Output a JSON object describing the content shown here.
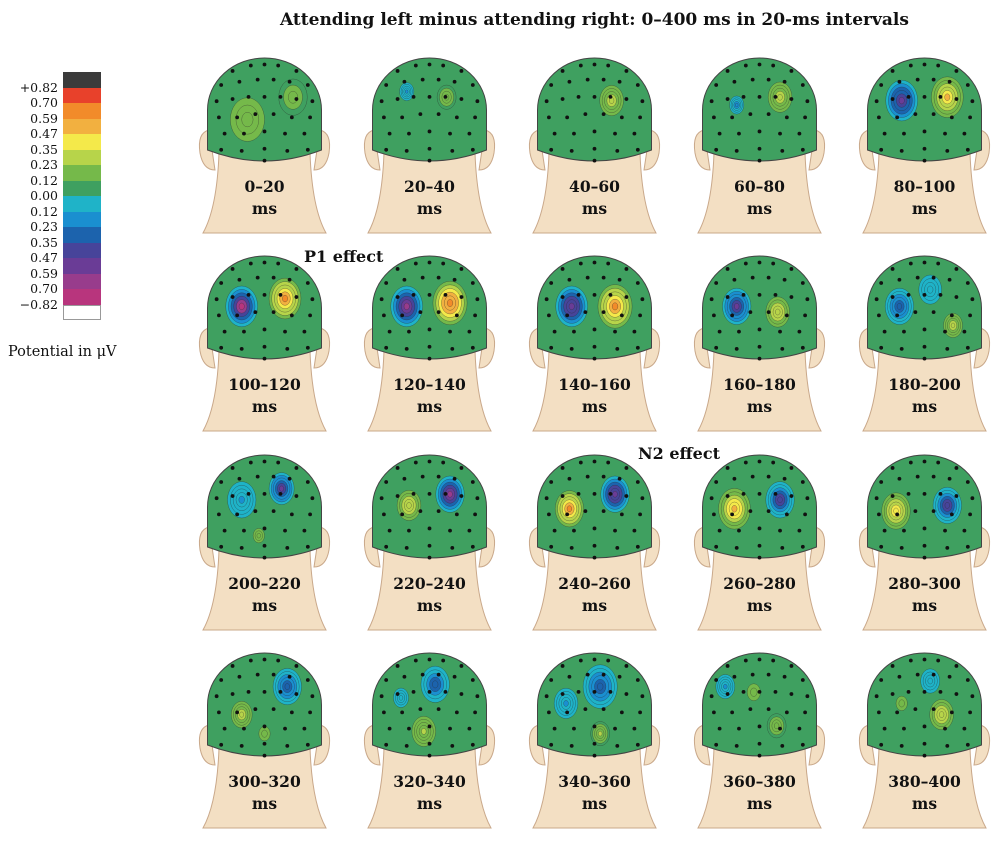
{
  "title": "Attending left minus attending right: 0–400 ms in 20-ms intervals",
  "legend": {
    "caption": "Potential in μV",
    "tick_labels": [
      "+0.82",
      "0.70",
      "0.59",
      "0.47",
      "0.35",
      "0.23",
      "0.12",
      "0.00",
      "0.12",
      "0.23",
      "0.35",
      "0.47",
      "0.59",
      "0.70",
      "−0.82"
    ],
    "swatch_colors": [
      "#3b3b3b",
      "#e8412b",
      "#f28b2a",
      "#f2b040",
      "#f4e94a",
      "#b7d44a",
      "#75b94a",
      "#3fa060",
      "#1fb3c8",
      "#1a8fd0",
      "#1c63ad",
      "#47449a",
      "#6a3c96",
      "#983c8c",
      "#b8357d",
      "#ffffff"
    ],
    "swatch_values": [
      0.82,
      0.7,
      0.59,
      0.47,
      0.35,
      0.23,
      0.12,
      0.0,
      -0.12,
      -0.23,
      -0.35,
      -0.47,
      -0.59,
      -0.7,
      -0.82,
      -0.9
    ]
  },
  "annotations": {
    "p1": "P1 effect",
    "n2": "N2 effect"
  },
  "maps": [
    {
      "line1": "0–20",
      "line2": "ms",
      "blobs": [
        [
          0.35,
          0.55,
          0.6,
          0.1
        ],
        [
          0.75,
          0.35,
          0.5,
          0.09
        ]
      ]
    },
    {
      "line1": "20–40",
      "line2": "ms",
      "blobs": [
        [
          0.65,
          0.35,
          0.25,
          0.12
        ],
        [
          0.3,
          0.3,
          0.15,
          -0.2
        ],
        [
          0.4,
          0.75,
          0.3,
          0.05
        ]
      ]
    },
    {
      "line1": "40–60",
      "line2": "ms",
      "blobs": [
        [
          0.65,
          0.38,
          0.25,
          0.22
        ],
        [
          0.3,
          0.55,
          0.3,
          0.05
        ]
      ]
    },
    {
      "line1": "60–80",
      "line2": "ms",
      "blobs": [
        [
          0.68,
          0.35,
          0.25,
          0.22
        ],
        [
          0.3,
          0.42,
          0.15,
          -0.25
        ]
      ]
    },
    {
      "line1": "80–100",
      "line2": "ms",
      "blobs": [
        [
          0.3,
          0.38,
          0.28,
          -0.6
        ],
        [
          0.7,
          0.35,
          0.28,
          0.42
        ]
      ]
    },
    {
      "line1": "100–120",
      "line2": "ms",
      "blobs": [
        [
          0.3,
          0.45,
          0.28,
          -0.78
        ],
        [
          0.68,
          0.38,
          0.28,
          0.58
        ]
      ]
    },
    {
      "line1": "120–140",
      "line2": "ms",
      "blobs": [
        [
          0.3,
          0.45,
          0.28,
          -0.7
        ],
        [
          0.68,
          0.42,
          0.3,
          0.62
        ]
      ]
    },
    {
      "line1": "140–160",
      "line2": "ms",
      "blobs": [
        [
          0.3,
          0.45,
          0.28,
          -0.62
        ],
        [
          0.68,
          0.45,
          0.3,
          0.55
        ]
      ]
    },
    {
      "line1": "160–180",
      "line2": "ms",
      "blobs": [
        [
          0.3,
          0.45,
          0.25,
          -0.55
        ],
        [
          0.66,
          0.5,
          0.25,
          0.28
        ]
      ]
    },
    {
      "line1": "180–200",
      "line2": "ms",
      "blobs": [
        [
          0.28,
          0.45,
          0.25,
          -0.4
        ],
        [
          0.75,
          0.62,
          0.2,
          0.25
        ],
        [
          0.55,
          0.3,
          0.3,
          -0.15
        ]
      ]
    },
    {
      "line1": "200–220",
      "line2": "ms",
      "blobs": [
        [
          0.65,
          0.3,
          0.22,
          -0.55
        ],
        [
          0.3,
          0.4,
          0.3,
          -0.2
        ],
        [
          0.45,
          0.72,
          0.2,
          0.1
        ]
      ]
    },
    {
      "line1": "220–240",
      "line2": "ms",
      "blobs": [
        [
          0.68,
          0.35,
          0.25,
          -0.68
        ],
        [
          0.32,
          0.45,
          0.25,
          0.28
        ],
        [
          0.45,
          0.75,
          0.2,
          0.05
        ]
      ]
    },
    {
      "line1": "240–260",
      "line2": "ms",
      "blobs": [
        [
          0.68,
          0.35,
          0.25,
          -0.62
        ],
        [
          0.28,
          0.48,
          0.25,
          0.55
        ]
      ]
    },
    {
      "line1": "260–280",
      "line2": "ms",
      "blobs": [
        [
          0.68,
          0.4,
          0.25,
          -0.52
        ],
        [
          0.28,
          0.48,
          0.28,
          0.45
        ]
      ]
    },
    {
      "line1": "280–300",
      "line2": "ms",
      "blobs": [
        [
          0.7,
          0.45,
          0.25,
          -0.5
        ],
        [
          0.25,
          0.5,
          0.25,
          0.4
        ]
      ]
    },
    {
      "line1": "300–320",
      "line2": "ms",
      "blobs": [
        [
          0.7,
          0.3,
          0.25,
          -0.4
        ],
        [
          0.3,
          0.55,
          0.22,
          0.25
        ],
        [
          0.5,
          0.72,
          0.3,
          0.08
        ]
      ]
    },
    {
      "line1": "320–340",
      "line2": "ms",
      "blobs": [
        [
          0.55,
          0.28,
          0.3,
          -0.35
        ],
        [
          0.45,
          0.7,
          0.25,
          0.2
        ],
        [
          0.25,
          0.4,
          0.2,
          -0.15
        ]
      ]
    },
    {
      "line1": "340–360",
      "line2": "ms",
      "blobs": [
        [
          0.55,
          0.3,
          0.3,
          -0.4
        ],
        [
          0.55,
          0.72,
          0.2,
          0.18
        ],
        [
          0.25,
          0.45,
          0.25,
          -0.18
        ]
      ]
    },
    {
      "line1": "360–380",
      "line2": "ms",
      "blobs": [
        [
          0.45,
          0.35,
          0.35,
          0.08
        ],
        [
          0.65,
          0.65,
          0.25,
          0.12
        ],
        [
          0.2,
          0.3,
          0.2,
          -0.2
        ]
      ]
    },
    {
      "line1": "380–400",
      "line2": "ms",
      "blobs": [
        [
          0.65,
          0.55,
          0.25,
          0.28
        ],
        [
          0.3,
          0.45,
          0.3,
          0.08
        ],
        [
          0.55,
          0.25,
          0.25,
          -0.15
        ]
      ]
    }
  ]
}
